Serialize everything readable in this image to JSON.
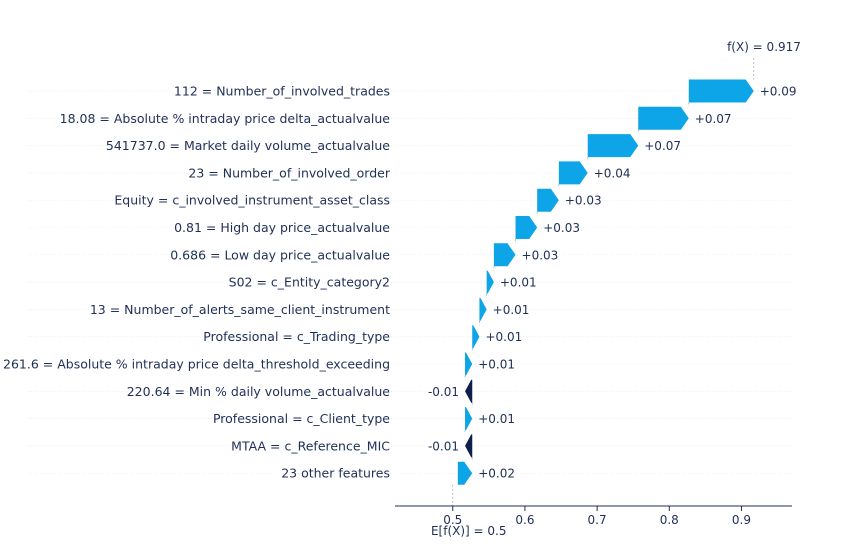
{
  "chart_data": {
    "type": "waterfall",
    "fx_label": "f(X) = 0.917",
    "base_label": "E[f(X)] = 0.5",
    "base_value": 0.5,
    "final_value": 0.917,
    "xlim": [
      0.42,
      0.97
    ],
    "x_ticks": [
      0.5,
      0.6,
      0.7,
      0.8,
      0.9
    ],
    "x_tick_labels": [
      "0.5",
      "0.6",
      "0.7",
      "0.8",
      "0.9"
    ],
    "colors": {
      "positive": "#0ea4e8",
      "negative": "#0f1f4d",
      "text": "#1f2f56"
    },
    "features": [
      {
        "label": "112 = Number_of_involved_trades",
        "value": 0.09,
        "value_label": "+0.09"
      },
      {
        "label": "18.08 = Absolute % intraday price delta_actualvalue",
        "value": 0.07,
        "value_label": "+0.07"
      },
      {
        "label": "541737.0 = Market daily volume_actualvalue",
        "value": 0.07,
        "value_label": "+0.07"
      },
      {
        "label": "23 = Number_of_involved_order",
        "value": 0.04,
        "value_label": "+0.04"
      },
      {
        "label": "Equity = c_involved_instrument_asset_class",
        "value": 0.03,
        "value_label": "+0.03"
      },
      {
        "label": "0.81 = High day price_actualvalue",
        "value": 0.03,
        "value_label": "+0.03"
      },
      {
        "label": "0.686 = Low day price_actualvalue",
        "value": 0.03,
        "value_label": "+0.03"
      },
      {
        "label": "S02 = c_Entity_category2",
        "value": 0.01,
        "value_label": "+0.01"
      },
      {
        "label": "13 = Number_of_alerts_same_client_instrument",
        "value": 0.01,
        "value_label": "+0.01"
      },
      {
        "label": "Professional = c_Trading_type",
        "value": 0.01,
        "value_label": "+0.01"
      },
      {
        "label": "261.6 = Absolute % intraday price delta_threshold_exceeding",
        "value": 0.01,
        "value_label": "+0.01"
      },
      {
        "label": "220.64 = Min % daily volume_actualvalue",
        "value": -0.01,
        "value_label": "-0.01"
      },
      {
        "label": "Professional = c_Client_type",
        "value": 0.01,
        "value_label": "+0.01"
      },
      {
        "label": "MTAA = c_Reference_MIC",
        "value": -0.01,
        "value_label": "-0.01"
      },
      {
        "label": "23 other features",
        "value": 0.02,
        "value_label": "+0.02"
      }
    ]
  }
}
